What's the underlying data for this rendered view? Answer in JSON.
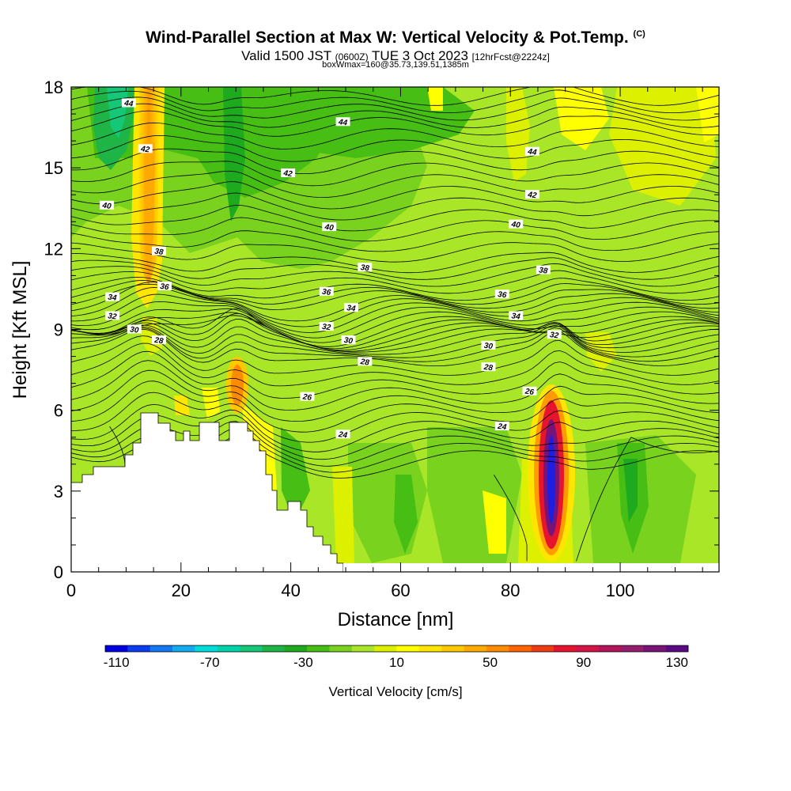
{
  "header": {
    "title": "Wind-Parallel Section at Max W: Vertical Velocity & Pot.Temp.",
    "title_tag": "(C)",
    "subtitle_pre": "Valid 1500 JST",
    "subtitle_utc": "(0600Z)",
    "subtitle_date": "TUE 3 Oct 2023",
    "subtitle_fcst": "[12hrFcst@2224z]",
    "box_info": "boxWmax=160@35.73,139.51,1385m"
  },
  "chart_data": {
    "type": "heatmap",
    "title": "Wind-Parallel Section at Max W: Vertical Velocity & Pot.Temp.",
    "xlabel": "Distance [nm]",
    "ylabel": "Height [Kft MSL]",
    "xlim": [
      0,
      118
    ],
    "ylim": [
      0,
      18
    ],
    "x_ticks": [
      0,
      20,
      40,
      60,
      80,
      100
    ],
    "y_ticks": [
      0,
      3,
      6,
      9,
      12,
      15,
      18
    ],
    "colorbar": {
      "label": "Vertical Velocity [cm/s]",
      "tick_values": [
        -110,
        -70,
        -30,
        10,
        50,
        90,
        130
      ],
      "colors": [
        "#0000e0",
        "#0a3cf0",
        "#1478f0",
        "#14aaf0",
        "#00dcdc",
        "#00d2aa",
        "#14c878",
        "#1eb446",
        "#1eaa1e",
        "#46be14",
        "#78d21e",
        "#aae628",
        "#dcf000",
        "#ffff00",
        "#ffe600",
        "#ffc800",
        "#ffaa00",
        "#ff8c00",
        "#ff6400",
        "#f03c14",
        "#e6142d",
        "#d21446",
        "#b4145a",
        "#961e6e",
        "#781478",
        "#5a0a82"
      ]
    },
    "vertical_velocity_features": [
      {
        "description": "updraft core",
        "x": 88.5,
        "y_range": [
          0.5,
          6.3
        ],
        "max": 140
      },
      {
        "description": "updraft column",
        "x": 14,
        "y_range": [
          9,
          18
        ],
        "max": 45
      },
      {
        "description": "updraft",
        "x": 30,
        "y_range": [
          5.5,
          7.5
        ],
        "max": 55
      }
    ],
    "isentrope_labels": [
      {
        "value": "44",
        "x": 10.5,
        "y": 17.4
      },
      {
        "value": "44",
        "x": 49.5,
        "y": 16.7
      },
      {
        "value": "44",
        "x": 84,
        "y": 15.6
      },
      {
        "value": "42",
        "x": 13.5,
        "y": 15.7
      },
      {
        "value": "42",
        "x": 39.5,
        "y": 14.8
      },
      {
        "value": "42",
        "x": 84,
        "y": 14.0
      },
      {
        "value": "40",
        "x": 6.5,
        "y": 13.6
      },
      {
        "value": "40",
        "x": 47,
        "y": 12.8
      },
      {
        "value": "40",
        "x": 81,
        "y": 12.9
      },
      {
        "value": "38",
        "x": 16,
        "y": 11.9
      },
      {
        "value": "38",
        "x": 53.5,
        "y": 11.3
      },
      {
        "value": "38",
        "x": 86,
        "y": 11.2
      },
      {
        "value": "36",
        "x": 17,
        "y": 10.6
      },
      {
        "value": "36",
        "x": 46.5,
        "y": 10.4
      },
      {
        "value": "36",
        "x": 78.5,
        "y": 10.3
      },
      {
        "value": "34",
        "x": 7.5,
        "y": 10.2
      },
      {
        "value": "34",
        "x": 51,
        "y": 9.8
      },
      {
        "value": "34",
        "x": 81,
        "y": 9.5
      },
      {
        "value": "32",
        "x": 7.5,
        "y": 9.5
      },
      {
        "value": "32",
        "x": 46.5,
        "y": 9.1
      },
      {
        "value": "32",
        "x": 88,
        "y": 8.8
      },
      {
        "value": "30",
        "x": 11.5,
        "y": 9.0
      },
      {
        "value": "30",
        "x": 50.5,
        "y": 8.6
      },
      {
        "value": "30",
        "x": 76,
        "y": 8.4
      },
      {
        "value": "28",
        "x": 16,
        "y": 8.6
      },
      {
        "value": "28",
        "x": 53.5,
        "y": 7.8
      },
      {
        "value": "28",
        "x": 76,
        "y": 7.6
      },
      {
        "value": "26",
        "x": 43,
        "y": 6.5
      },
      {
        "value": "26",
        "x": 83.5,
        "y": 6.7
      },
      {
        "value": "24",
        "x": 49.5,
        "y": 5.1
      },
      {
        "value": "24",
        "x": 78.5,
        "y": 5.4
      }
    ]
  }
}
